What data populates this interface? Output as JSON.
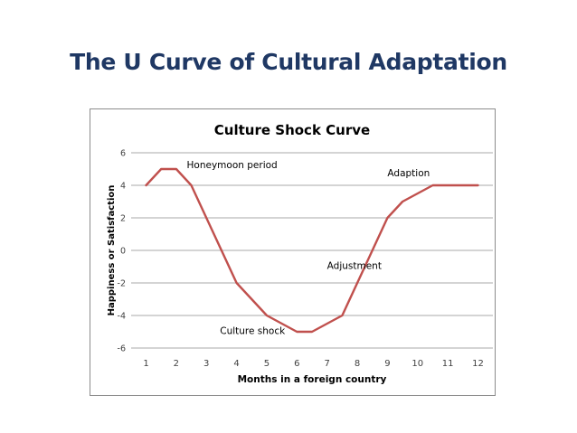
{
  "slide": {
    "title": "The U Curve of Cultural Adaptation"
  },
  "chart_data": {
    "type": "line",
    "title": "Culture Shock Curve",
    "xlabel": "Months in a foreign country",
    "ylabel": "Happiness or Satisfaction",
    "xlim": [
      1,
      12
    ],
    "ylim": [
      -6,
      6
    ],
    "x_ticks": [
      1,
      2,
      3,
      4,
      5,
      6,
      7,
      8,
      9,
      10,
      11,
      12
    ],
    "y_ticks": [
      -6,
      -4,
      -2,
      0,
      2,
      4,
      6
    ],
    "grid": "horizontal",
    "legend": "none",
    "line_color": "#c0504d",
    "series": [
      {
        "x": [
          1,
          1.5,
          2,
          2.5,
          4,
          5,
          6,
          6.5,
          7.5,
          9,
          9.5,
          10.5,
          11,
          12
        ],
        "y": [
          4,
          5,
          5,
          4,
          -2,
          -4,
          -5,
          -5,
          -4,
          2,
          3,
          4,
          4,
          4
        ]
      }
    ],
    "annotations": [
      {
        "text": "Honeymoon period",
        "x": 2.35,
        "y": 5.05
      },
      {
        "text": "Adaption",
        "x": 9.0,
        "y": 4.55
      },
      {
        "text": "Adjustment",
        "x": 7.0,
        "y": -1.15
      },
      {
        "text": "Culture shock",
        "x": 3.45,
        "y": -5.15
      }
    ]
  }
}
